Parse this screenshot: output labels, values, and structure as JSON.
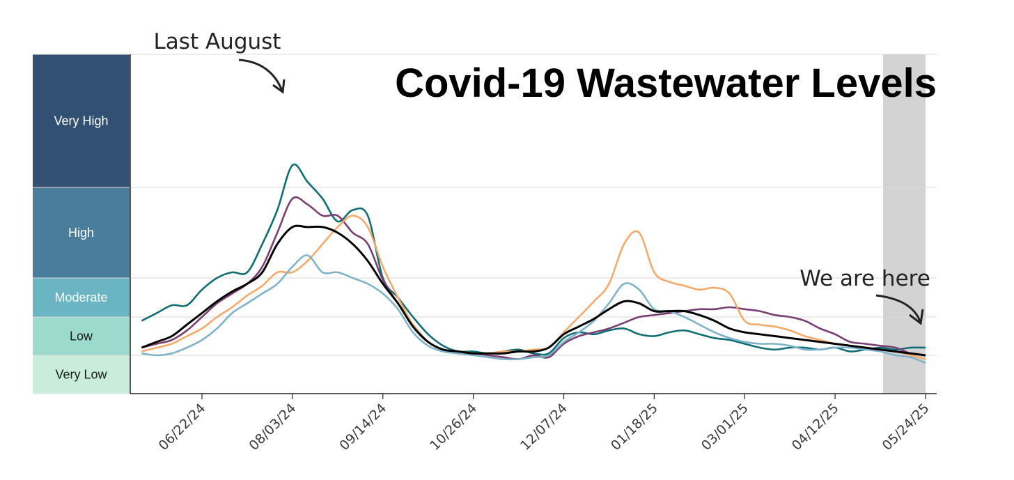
{
  "chart_data": {
    "type": "line",
    "title": "Covid-19 Wastewater Levels",
    "xlabel": "",
    "ylabel": "",
    "x_tick_labels": [
      "06/22/24",
      "08/03/24",
      "09/14/24",
      "10/26/24",
      "12/07/24",
      "01/18/25",
      "03/01/25",
      "04/12/25",
      "05/24/25"
    ],
    "y_unit_note": "value expressed on the level scale: 0 = bottom of Very Low, 5 = top of Very High",
    "ylim": [
      0,
      5
    ],
    "levels": [
      {
        "label": "Very Low",
        "from": 0,
        "to": 1,
        "color": "#c8eedb",
        "dark_text": true
      },
      {
        "label": "Low",
        "from": 1,
        "to": 2,
        "color": "#9bdacd",
        "dark_text": true
      },
      {
        "label": "Moderate",
        "from": 2,
        "to": 3,
        "color": "#6ab4c4",
        "dark_text": false
      },
      {
        "label": "High",
        "from": 3,
        "to": 3.8,
        "color": "#4a7d9c",
        "dark_text": false
      },
      {
        "label": "Very High",
        "from": 3.8,
        "to": 5,
        "color": "#324f74",
        "dark_text": false
      }
    ],
    "shaded_region": {
      "from": "05/14/25",
      "to": "05/24/25",
      "color": "#d3d3d3"
    },
    "series": [
      {
        "color": "#0f6e75",
        "points": [
          [
            "05/25/24",
            1.9
          ],
          [
            "06/01/24",
            2.1
          ],
          [
            "06/08/24",
            2.3
          ],
          [
            "06/15/24",
            2.3
          ],
          [
            "06/22/24",
            2.7
          ],
          [
            "06/29/24",
            3.0
          ],
          [
            "07/06/24",
            3.05
          ],
          [
            "07/13/24",
            3.05
          ],
          [
            "07/20/24",
            3.3
          ],
          [
            "07/27/24",
            3.6
          ],
          [
            "08/03/24",
            4.0
          ],
          [
            "08/10/24",
            3.85
          ],
          [
            "08/17/24",
            3.7
          ],
          [
            "08/24/24",
            3.5
          ],
          [
            "08/31/24",
            3.6
          ],
          [
            "09/07/24",
            3.55
          ],
          [
            "09/14/24",
            3.0
          ],
          [
            "09/21/24",
            2.5
          ],
          [
            "09/28/24",
            2.0
          ],
          [
            "10/05/24",
            1.55
          ],
          [
            "10/12/24",
            1.25
          ],
          [
            "10/19/24",
            1.1
          ],
          [
            "10/26/24",
            1.1
          ],
          [
            "11/02/24",
            1.05
          ],
          [
            "11/09/24",
            1.1
          ],
          [
            "11/16/24",
            1.15
          ],
          [
            "11/23/24",
            1.05
          ],
          [
            "11/30/24",
            1.05
          ],
          [
            "12/07/24",
            1.45
          ],
          [
            "12/14/24",
            1.6
          ],
          [
            "12/21/24",
            1.55
          ],
          [
            "12/28/24",
            1.65
          ],
          [
            "01/04/25",
            1.7
          ],
          [
            "01/11/25",
            1.55
          ],
          [
            "01/18/25",
            1.5
          ],
          [
            "01/25/25",
            1.6
          ],
          [
            "02/01/25",
            1.65
          ],
          [
            "02/08/25",
            1.55
          ],
          [
            "02/15/25",
            1.45
          ],
          [
            "02/22/25",
            1.4
          ],
          [
            "03/01/25",
            1.3
          ],
          [
            "03/08/25",
            1.2
          ],
          [
            "03/15/25",
            1.15
          ],
          [
            "03/22/25",
            1.2
          ],
          [
            "03/29/25",
            1.2
          ],
          [
            "04/05/25",
            1.15
          ],
          [
            "04/12/25",
            1.2
          ],
          [
            "04/19/25",
            1.1
          ],
          [
            "04/26/25",
            1.15
          ],
          [
            "05/03/25",
            1.2
          ],
          [
            "05/10/25",
            1.15
          ],
          [
            "05/17/25",
            1.2
          ],
          [
            "05/24/25",
            1.2
          ]
        ]
      },
      {
        "color": "#7a3f72",
        "points": [
          [
            "05/25/24",
            1.2
          ],
          [
            "06/01/24",
            1.3
          ],
          [
            "06/08/24",
            1.4
          ],
          [
            "06/15/24",
            1.65
          ],
          [
            "06/22/24",
            2.0
          ],
          [
            "06/29/24",
            2.35
          ],
          [
            "07/06/24",
            2.6
          ],
          [
            "07/13/24",
            2.85
          ],
          [
            "07/20/24",
            3.1
          ],
          [
            "07/27/24",
            3.4
          ],
          [
            "08/03/24",
            3.7
          ],
          [
            "08/10/24",
            3.65
          ],
          [
            "08/17/24",
            3.55
          ],
          [
            "08/24/24",
            3.55
          ],
          [
            "08/31/24",
            3.4
          ],
          [
            "09/07/24",
            3.3
          ],
          [
            "09/14/24",
            2.95
          ],
          [
            "09/21/24",
            2.35
          ],
          [
            "09/28/24",
            1.8
          ],
          [
            "10/05/24",
            1.35
          ],
          [
            "10/12/24",
            1.15
          ],
          [
            "10/19/24",
            1.05
          ],
          [
            "10/26/24",
            1.05
          ],
          [
            "11/02/24",
            1.0
          ],
          [
            "11/09/24",
            0.95
          ],
          [
            "11/16/24",
            0.9
          ],
          [
            "11/23/24",
            1.0
          ],
          [
            "11/30/24",
            0.95
          ],
          [
            "12/07/24",
            1.3
          ],
          [
            "12/14/24",
            1.5
          ],
          [
            "12/21/24",
            1.6
          ],
          [
            "12/28/24",
            1.7
          ],
          [
            "01/04/25",
            1.85
          ],
          [
            "01/11/25",
            2.0
          ],
          [
            "01/18/25",
            2.05
          ],
          [
            "01/25/25",
            2.1
          ],
          [
            "02/01/25",
            2.15
          ],
          [
            "02/08/25",
            2.2
          ],
          [
            "02/15/25",
            2.2
          ],
          [
            "02/22/25",
            2.25
          ],
          [
            "03/01/25",
            2.2
          ],
          [
            "03/08/25",
            2.15
          ],
          [
            "03/15/25",
            2.05
          ],
          [
            "03/22/25",
            2.0
          ],
          [
            "03/29/25",
            1.9
          ],
          [
            "04/05/25",
            1.7
          ],
          [
            "04/12/25",
            1.55
          ],
          [
            "04/19/25",
            1.35
          ],
          [
            "04/26/25",
            1.3
          ],
          [
            "05/03/25",
            1.25
          ],
          [
            "05/10/25",
            1.2
          ],
          [
            "05/17/25",
            1.05
          ],
          [
            "05/24/25",
            1.0
          ]
        ]
      },
      {
        "color": "#f5aa6a",
        "points": [
          [
            "05/25/24",
            1.1
          ],
          [
            "06/01/24",
            1.2
          ],
          [
            "06/08/24",
            1.3
          ],
          [
            "06/15/24",
            1.5
          ],
          [
            "06/22/24",
            1.7
          ],
          [
            "06/29/24",
            2.0
          ],
          [
            "07/06/24",
            2.25
          ],
          [
            "07/13/24",
            2.55
          ],
          [
            "07/20/24",
            2.8
          ],
          [
            "07/27/24",
            3.05
          ],
          [
            "08/03/24",
            3.05
          ],
          [
            "08/10/24",
            3.15
          ],
          [
            "08/17/24",
            3.3
          ],
          [
            "08/24/24",
            3.45
          ],
          [
            "08/31/24",
            3.55
          ],
          [
            "09/07/24",
            3.45
          ],
          [
            "09/14/24",
            3.1
          ],
          [
            "09/21/24",
            2.5
          ],
          [
            "09/28/24",
            1.8
          ],
          [
            "10/05/24",
            1.35
          ],
          [
            "10/12/24",
            1.15
          ],
          [
            "10/19/24",
            1.1
          ],
          [
            "10/26/24",
            1.05
          ],
          [
            "11/02/24",
            1.05
          ],
          [
            "11/09/24",
            1.1
          ],
          [
            "11/16/24",
            1.1
          ],
          [
            "11/23/24",
            1.15
          ],
          [
            "11/30/24",
            1.2
          ],
          [
            "12/07/24",
            1.6
          ],
          [
            "12/14/24",
            2.0
          ],
          [
            "12/21/24",
            2.4
          ],
          [
            "12/28/24",
            2.85
          ],
          [
            "01/04/25",
            3.3
          ],
          [
            "01/11/25",
            3.4
          ],
          [
            "01/18/25",
            3.05
          ],
          [
            "01/25/25",
            2.9
          ],
          [
            "02/01/25",
            2.8
          ],
          [
            "02/08/25",
            2.7
          ],
          [
            "02/15/25",
            2.75
          ],
          [
            "02/22/25",
            2.6
          ],
          [
            "03/01/25",
            1.9
          ],
          [
            "03/08/25",
            1.8
          ],
          [
            "03/15/25",
            1.75
          ],
          [
            "03/22/25",
            1.65
          ],
          [
            "03/29/25",
            1.5
          ],
          [
            "04/05/25",
            1.4
          ],
          [
            "04/12/25",
            1.3
          ],
          [
            "04/19/25",
            1.25
          ],
          [
            "04/26/25",
            1.2
          ],
          [
            "05/03/25",
            1.15
          ],
          [
            "05/10/25",
            1.1
          ],
          [
            "05/17/25",
            1.0
          ],
          [
            "05/24/25",
            0.9
          ]
        ]
      },
      {
        "color": "#7fb3c9",
        "points": [
          [
            "05/25/24",
            1.05
          ],
          [
            "06/01/24",
            1.0
          ],
          [
            "06/08/24",
            1.05
          ],
          [
            "06/15/24",
            1.2
          ],
          [
            "06/22/24",
            1.4
          ],
          [
            "06/29/24",
            1.7
          ],
          [
            "07/06/24",
            2.1
          ],
          [
            "07/13/24",
            2.35
          ],
          [
            "07/20/24",
            2.6
          ],
          [
            "07/27/24",
            2.85
          ],
          [
            "08/03/24",
            3.1
          ],
          [
            "08/10/24",
            3.2
          ],
          [
            "08/17/24",
            3.05
          ],
          [
            "08/24/24",
            3.05
          ],
          [
            "08/31/24",
            3.0
          ],
          [
            "09/07/24",
            2.85
          ],
          [
            "09/14/24",
            2.6
          ],
          [
            "09/21/24",
            2.2
          ],
          [
            "09/28/24",
            1.6
          ],
          [
            "10/05/24",
            1.25
          ],
          [
            "10/12/24",
            1.1
          ],
          [
            "10/19/24",
            1.05
          ],
          [
            "10/26/24",
            1.0
          ],
          [
            "11/02/24",
            0.95
          ],
          [
            "11/09/24",
            0.9
          ],
          [
            "11/16/24",
            0.9
          ],
          [
            "11/23/24",
            0.95
          ],
          [
            "11/30/24",
            1.0
          ],
          [
            "12/07/24",
            1.35
          ],
          [
            "12/14/24",
            1.6
          ],
          [
            "12/21/24",
            1.9
          ],
          [
            "12/28/24",
            2.35
          ],
          [
            "01/04/25",
            2.85
          ],
          [
            "01/11/25",
            2.7
          ],
          [
            "01/18/25",
            2.2
          ],
          [
            "01/25/25",
            2.15
          ],
          [
            "02/01/25",
            2.0
          ],
          [
            "02/08/25",
            1.8
          ],
          [
            "02/15/25",
            1.6
          ],
          [
            "02/22/25",
            1.45
          ],
          [
            "03/01/25",
            1.35
          ],
          [
            "03/08/25",
            1.3
          ],
          [
            "03/15/25",
            1.3
          ],
          [
            "03/22/25",
            1.25
          ],
          [
            "03/29/25",
            1.15
          ],
          [
            "04/05/25",
            1.15
          ],
          [
            "04/12/25",
            1.2
          ],
          [
            "04/19/25",
            1.2
          ],
          [
            "04/26/25",
            1.15
          ],
          [
            "05/03/25",
            1.1
          ],
          [
            "05/10/25",
            1.0
          ],
          [
            "05/17/25",
            0.95
          ],
          [
            "05/24/25",
            0.8
          ]
        ]
      },
      {
        "color": "#000000",
        "points": [
          [
            "05/25/24",
            1.2
          ],
          [
            "06/01/24",
            1.35
          ],
          [
            "06/08/24",
            1.5
          ],
          [
            "06/15/24",
            1.8
          ],
          [
            "06/22/24",
            2.1
          ],
          [
            "06/29/24",
            2.4
          ],
          [
            "07/06/24",
            2.65
          ],
          [
            "07/13/24",
            2.85
          ],
          [
            "07/20/24",
            3.05
          ],
          [
            "07/27/24",
            3.3
          ],
          [
            "08/03/24",
            3.45
          ],
          [
            "08/10/24",
            3.45
          ],
          [
            "08/17/24",
            3.45
          ],
          [
            "08/24/24",
            3.4
          ],
          [
            "08/31/24",
            3.3
          ],
          [
            "09/07/24",
            3.15
          ],
          [
            "09/14/24",
            2.85
          ],
          [
            "09/21/24",
            2.35
          ],
          [
            "09/28/24",
            1.75
          ],
          [
            "10/05/24",
            1.35
          ],
          [
            "10/12/24",
            1.15
          ],
          [
            "10/19/24",
            1.1
          ],
          [
            "10/26/24",
            1.05
          ],
          [
            "11/02/24",
            1.05
          ],
          [
            "11/09/24",
            1.05
          ],
          [
            "11/16/24",
            1.1
          ],
          [
            "11/23/24",
            1.1
          ],
          [
            "11/30/24",
            1.2
          ],
          [
            "12/07/24",
            1.55
          ],
          [
            "12/14/24",
            1.75
          ],
          [
            "12/21/24",
            1.95
          ],
          [
            "12/28/24",
            2.2
          ],
          [
            "01/04/25",
            2.4
          ],
          [
            "01/11/25",
            2.35
          ],
          [
            "01/18/25",
            2.15
          ],
          [
            "01/25/25",
            2.15
          ],
          [
            "02/01/25",
            2.15
          ],
          [
            "02/08/25",
            2.05
          ],
          [
            "02/15/25",
            1.9
          ],
          [
            "02/22/25",
            1.7
          ],
          [
            "03/01/25",
            1.6
          ],
          [
            "03/08/25",
            1.55
          ],
          [
            "03/15/25",
            1.5
          ],
          [
            "03/22/25",
            1.45
          ],
          [
            "03/29/25",
            1.4
          ],
          [
            "04/05/25",
            1.35
          ],
          [
            "04/12/25",
            1.3
          ],
          [
            "04/19/25",
            1.25
          ],
          [
            "04/26/25",
            1.2
          ],
          [
            "05/03/25",
            1.15
          ],
          [
            "05/10/25",
            1.1
          ],
          [
            "05/17/25",
            1.05
          ],
          [
            "05/24/25",
            1.0
          ]
        ]
      }
    ],
    "annotations": [
      "Last August",
      "We are here"
    ]
  }
}
